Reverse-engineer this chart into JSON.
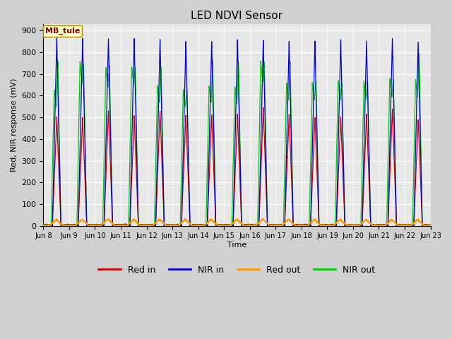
{
  "title": "LED NDVI Sensor",
  "ylabel": "Red, NIR response (mV)",
  "xlabel": "Time",
  "ylim": [
    0,
    930
  ],
  "annotation_text": "MB_tule",
  "annotation_bg": "#ffffcc",
  "annotation_border": "#aa8800",
  "annotation_text_color": "#880000",
  "fig_bg": "#d0d0d0",
  "axes_bg": "#e8e8e8",
  "colors": {
    "red_in": "#cc0000",
    "nir_in": "#0000cc",
    "red_out": "#ff9900",
    "nir_out": "#00cc00"
  },
  "legend_labels": [
    "Red in",
    "NIR in",
    "Red out",
    "NIR out"
  ],
  "x_tick_labels": [
    "Jun 8",
    "Jun 9",
    "Jun 10",
    "Jun 11",
    "Jun 12",
    "Jun 13",
    "Jun 14",
    "Jun 15",
    "Jun 16",
    "Jun 17",
    "Jun 18",
    "Jun 19",
    "Jun 20",
    "Jun 21",
    "Jun 22",
    "Jun 23"
  ],
  "num_cycles": 15,
  "red_in_peaks": [
    500,
    500,
    528,
    505,
    530,
    510,
    510,
    515,
    545,
    515,
    500,
    500,
    515,
    540,
    490
  ],
  "nir_in_peaks": [
    862,
    865,
    862,
    860,
    858,
    848,
    850,
    855,
    855,
    848,
    848,
    855,
    850,
    862,
    845
  ],
  "nir_out_peaks": [
    625,
    760,
    728,
    735,
    645,
    628,
    645,
    640,
    758,
    660,
    660,
    668,
    665,
    680,
    675
  ],
  "nir_out_sec": [
    760,
    745,
    740,
    730,
    730,
    627,
    758,
    760,
    755,
    755,
    665,
    660,
    665,
    675,
    795
  ],
  "red_out_peaks": [
    28,
    28,
    30,
    28,
    28,
    28,
    28,
    28,
    30,
    28,
    28,
    28,
    27,
    27,
    27
  ]
}
